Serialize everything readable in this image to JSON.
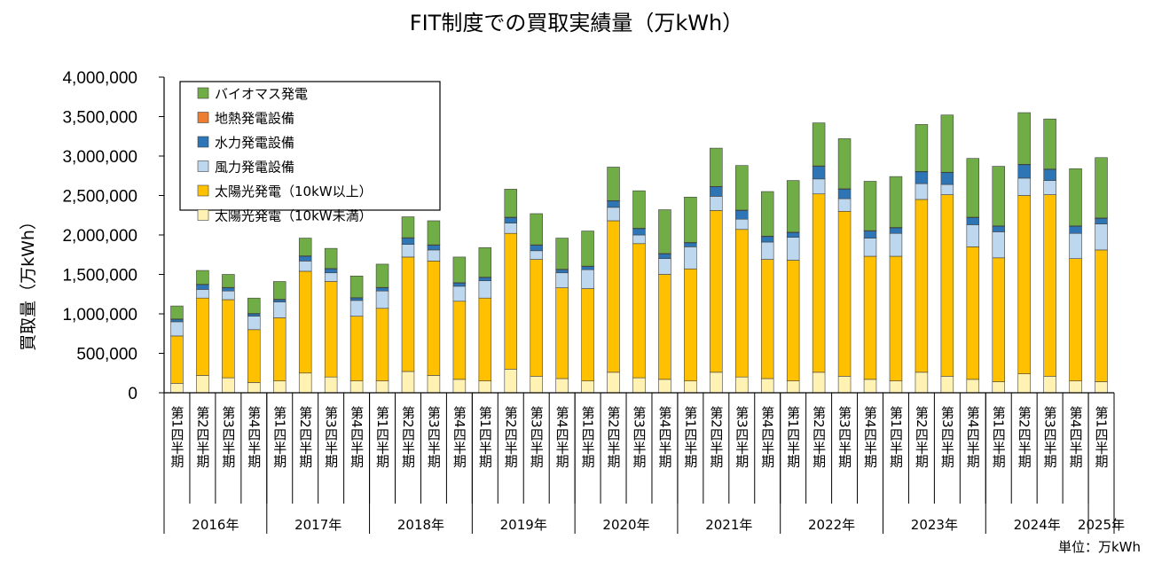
{
  "chart_data": {
    "type": "bar",
    "stacked": true,
    "title": "FIT制度での買取実績量（万kWh）",
    "ylabel": "買取量（万kWh）",
    "unit_label": "単位：万kWh",
    "ylim": [
      0,
      4000000
    ],
    "yticks": [
      "0",
      "500,000",
      "1,000,000",
      "1,500,000",
      "2,000,000",
      "2,500,000",
      "3,000,000",
      "3,500,000",
      "4,000,000"
    ],
    "quarter_labels": [
      "第1四半期",
      "第2四半期",
      "第3四半期",
      "第4四半期",
      "第1四半期",
      "第2四半期",
      "第3四半期",
      "第4四半期",
      "第1四半期",
      "第2四半期",
      "第3四半期",
      "第4四半期",
      "第1四半期",
      "第2四半期",
      "第3四半期",
      "第4四半期",
      "第1四半期",
      "第2四半期",
      "第3四半期",
      "第4四半期",
      "第1四半期",
      "第2四半期",
      "第3四半期",
      "第4四半期",
      "第1四半期",
      "第2四半期",
      "第3四半期",
      "第4四半期",
      "第1四半期",
      "第2四半期",
      "第3四半期",
      "第4四半期",
      "第1四半期",
      "第2四半期",
      "第3四半期",
      "第4四半期",
      "第1四半期"
    ],
    "year_groups": [
      {
        "label": "2016年",
        "count": 4
      },
      {
        "label": "2017年",
        "count": 4
      },
      {
        "label": "2018年",
        "count": 4
      },
      {
        "label": "2019年",
        "count": 4
      },
      {
        "label": "2020年",
        "count": 4
      },
      {
        "label": "2021年",
        "count": 4
      },
      {
        "label": "2022年",
        "count": 4
      },
      {
        "label": "2023年",
        "count": 4
      },
      {
        "label": "2024年",
        "count": 4
      },
      {
        "label": "2025年",
        "count": 1
      }
    ],
    "legend_placement": "top-left",
    "grid": false,
    "series": [
      {
        "name": "太陽光発電（10kW未満）",
        "color": "#fff2b3",
        "values": [
          120000,
          220000,
          190000,
          130000,
          150000,
          250000,
          200000,
          150000,
          150000,
          270000,
          220000,
          170000,
          150000,
          300000,
          210000,
          180000,
          150000,
          260000,
          190000,
          170000,
          150000,
          260000,
          200000,
          180000,
          150000,
          260000,
          210000,
          170000,
          150000,
          260000,
          210000,
          170000,
          140000,
          240000,
          210000,
          150000,
          140000
        ]
      },
      {
        "name": "太陽光発電（10kW以上）",
        "color": "#ffc000",
        "values": [
          600000,
          980000,
          990000,
          670000,
          800000,
          1290000,
          1210000,
          820000,
          920000,
          1450000,
          1450000,
          990000,
          1050000,
          1720000,
          1480000,
          1150000,
          1170000,
          1920000,
          1700000,
          1330000,
          1420000,
          2050000,
          1870000,
          1510000,
          1530000,
          2260000,
          2090000,
          1560000,
          1580000,
          2190000,
          2300000,
          1680000,
          1570000,
          2260000,
          2300000,
          1550000,
          1670000
        ]
      },
      {
        "name": "風力発電設備",
        "color": "#bdd7ee",
        "values": [
          180000,
          110000,
          110000,
          170000,
          200000,
          130000,
          110000,
          200000,
          220000,
          160000,
          140000,
          190000,
          220000,
          130000,
          110000,
          190000,
          240000,
          170000,
          110000,
          200000,
          280000,
          180000,
          130000,
          220000,
          290000,
          190000,
          160000,
          230000,
          290000,
          200000,
          130000,
          280000,
          330000,
          220000,
          180000,
          320000,
          330000
        ]
      },
      {
        "name": "水力発電設備",
        "color": "#2e75b6",
        "values": [
          30000,
          60000,
          40000,
          30000,
          30000,
          60000,
          50000,
          30000,
          40000,
          80000,
          60000,
          40000,
          40000,
          70000,
          70000,
          40000,
          40000,
          80000,
          80000,
          60000,
          50000,
          120000,
          110000,
          70000,
          60000,
          160000,
          120000,
          90000,
          70000,
          150000,
          150000,
          90000,
          70000,
          170000,
          140000,
          90000,
          70000
        ]
      },
      {
        "name": "地熱発電設備",
        "color": "#ed7d31",
        "values": [
          5000,
          5000,
          5000,
          5000,
          5000,
          5000,
          5000,
          5000,
          5000,
          5000,
          5000,
          5000,
          5000,
          5000,
          5000,
          5000,
          5000,
          5000,
          5000,
          5000,
          5000,
          5000,
          5000,
          5000,
          5000,
          5000,
          5000,
          5000,
          5000,
          5000,
          5000,
          5000,
          5000,
          5000,
          5000,
          5000,
          5000
        ]
      },
      {
        "name": "バイオマス発電",
        "color": "#70ad47",
        "values": [
          165000,
          175000,
          165000,
          195000,
          225000,
          225000,
          255000,
          275000,
          295000,
          265000,
          305000,
          325000,
          375000,
          355000,
          395000,
          395000,
          445000,
          425000,
          475000,
          555000,
          575000,
          485000,
          565000,
          565000,
          655000,
          545000,
          635000,
          625000,
          645000,
          595000,
          725000,
          745000,
          755000,
          655000,
          635000,
          725000,
          765000
        ]
      }
    ]
  }
}
